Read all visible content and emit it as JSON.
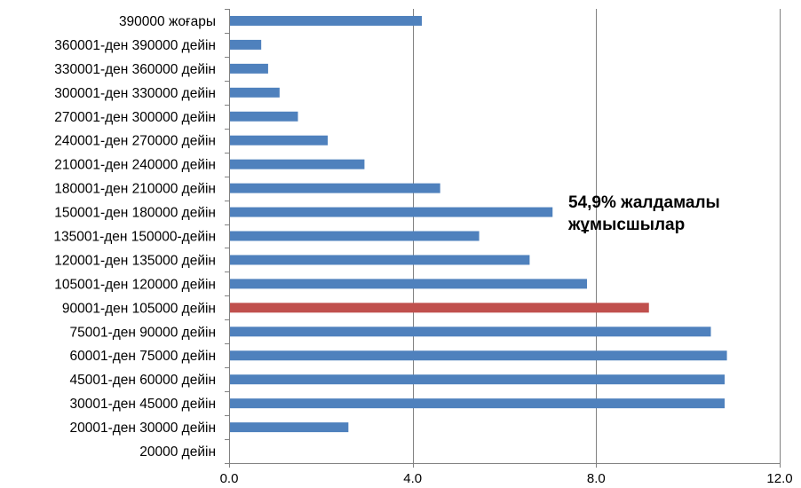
{
  "chart_data": {
    "type": "bar",
    "orientation": "horizontal",
    "categories": [
      "390000 жоғары",
      "360001-ден 390000 дейін",
      "330001-ден 360000 дейін",
      "300001-ден 330000 дейін",
      "270001-ден 300000 дейін",
      "240001-ден 270000 дейін",
      "210001-ден 240000 дейін",
      "180001-ден 210000 дейін",
      "150001-ден 180000 дейін",
      "135001-ден 150000-дейін",
      "120001-ден 135000 дейін",
      "105001-ден 120000 дейін",
      "90001-ден 105000 дейін",
      "75001-ден 90000 дейін",
      "60001-ден 75000 дейін",
      "45001-ден 60000 дейін",
      "30001-ден 45000 дейін",
      "20001-ден 30000 дейін",
      "20000 дейін"
    ],
    "values": [
      4.2,
      0.7,
      0.85,
      1.1,
      1.5,
      2.15,
      2.95,
      4.6,
      7.05,
      5.45,
      6.55,
      7.8,
      9.15,
      10.5,
      10.85,
      10.8,
      10.8,
      2.6,
      0
    ],
    "highlight_index": 12,
    "colors": {
      "bar": "#4f81bd",
      "highlight": "#c0504d",
      "grid": "#808080",
      "axis": "#808080"
    },
    "xlim": [
      0,
      12
    ],
    "xticks": [
      "0.0",
      "4.0",
      "8.0",
      "12.0"
    ],
    "xtick_values": [
      0,
      4,
      8,
      12
    ],
    "grid": true,
    "title": "",
    "xlabel": "",
    "ylabel": ""
  },
  "annotation": "54,9% жалдамалы\nжұмысшылар"
}
